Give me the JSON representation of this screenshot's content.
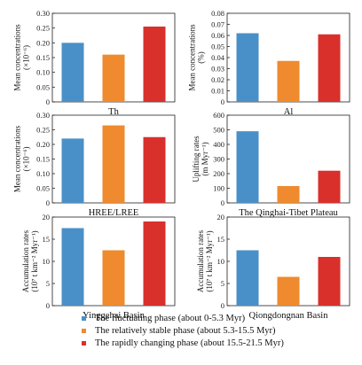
{
  "chart_data": [
    {
      "type": "bar",
      "xlabel": "Th",
      "ylabel": [
        "Mean concentrations",
        "(×10⁻⁶)"
      ],
      "ylim": [
        0,
        0.3
      ],
      "ticks": [
        "0",
        "0.05",
        "0.10",
        "0.15",
        "0.20",
        "0.25",
        "0.30"
      ],
      "values": [
        0.2,
        0.16,
        0.255
      ],
      "grid": false
    },
    {
      "type": "bar",
      "xlabel": "Al",
      "ylabel": [
        "Mean concentrations",
        "(%)"
      ],
      "ylim": [
        0,
        0.08
      ],
      "ticks": [
        "0",
        "0.01",
        "0.02",
        "0.03",
        "0.04",
        "0.05",
        "0.06",
        "0.07",
        "0.08"
      ],
      "values": [
        0.062,
        0.037,
        0.061
      ],
      "grid": false
    },
    {
      "type": "bar",
      "xlabel": "HREE/LREE",
      "ylabel": [
        "Mean concentrations",
        "(×10⁻⁶)"
      ],
      "ylim": [
        0,
        0.3
      ],
      "ticks": [
        "0",
        "0.05",
        "0.10",
        "0.15",
        "0.20",
        "0.25",
        "0.30"
      ],
      "values": [
        0.22,
        0.265,
        0.225
      ],
      "grid": false
    },
    {
      "type": "bar",
      "xlabel": "The Qinghai-Tibet Plateau",
      "ylabel": [
        "Uplifting rates",
        "(m Myr⁻¹)"
      ],
      "ylim": [
        0,
        600
      ],
      "ticks": [
        "0",
        "100",
        "200",
        "300",
        "400",
        "500",
        "600"
      ],
      "values": [
        490,
        115,
        220
      ],
      "grid": false
    },
    {
      "type": "bar",
      "xlabel": "Yinggehai Basin",
      "ylabel": [
        "Accumulation rates",
        "(10⁷ t km⁻² Myr⁻¹)"
      ],
      "ylim": [
        0,
        20
      ],
      "ticks": [
        "0",
        "5",
        "10",
        "15",
        "20"
      ],
      "values": [
        17.5,
        12.5,
        19.0
      ],
      "grid": false
    },
    {
      "type": "bar",
      "xlabel": "Qiongdongnan Basin",
      "ylabel": [
        "Accumulation rates",
        "(10⁷ t km⁻² Myr⁻¹)"
      ],
      "ylim": [
        0,
        20
      ],
      "ticks": [
        "0",
        "5",
        "10",
        "15",
        "20"
      ],
      "values": [
        12.5,
        6.5,
        11.0
      ],
      "grid": false
    }
  ],
  "legend": [
    {
      "label": "The fluctuating phase (about 0-5.3 Myr)",
      "color": "#4a90c8"
    },
    {
      "label": "The relatively stable phase (about 5.3-15.5 Myr)",
      "color": "#ef8a2e"
    },
    {
      "label": "The rapidly changing phase (about 15.5-21.5 Myr)",
      "color": "#d9302c"
    }
  ]
}
